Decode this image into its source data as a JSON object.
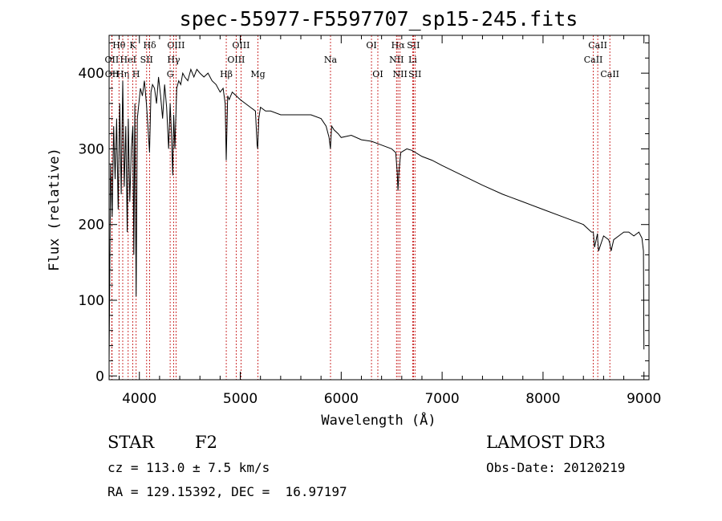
{
  "chart_data": {
    "type": "line",
    "title": "spec-55977-F5597707_sp15-245.fits",
    "xlabel": "Wavelength (Å)",
    "ylabel": "Flux (relative)",
    "xlim": [
      3700,
      9050
    ],
    "ylim": [
      -5,
      450
    ],
    "xticks": [
      4000,
      5000,
      6000,
      7000,
      8000,
      9000
    ],
    "yticks": [
      0,
      100,
      200,
      300,
      400
    ],
    "grid": false,
    "series": [
      {
        "name": "flux",
        "x": [
          3700,
          3715,
          3730,
          3745,
          3760,
          3775,
          3790,
          3805,
          3820,
          3835,
          3850,
          3865,
          3880,
          3890,
          3905,
          3920,
          3935,
          3945,
          3955,
          3968,
          3980,
          3995,
          4010,
          4030,
          4050,
          4070,
          4085,
          4101,
          4115,
          4130,
          4150,
          4170,
          4190,
          4210,
          4230,
          4250,
          4270,
          4290,
          4305,
          4318,
          4330,
          4340,
          4352,
          4370,
          4390,
          4410,
          4430,
          4450,
          4480,
          4510,
          4540,
          4570,
          4600,
          4640,
          4680,
          4720,
          4760,
          4800,
          4830,
          4850,
          4861,
          4875,
          4890,
          4920,
          4960,
          5000,
          5050,
          5100,
          5150,
          5167,
          5172,
          5183,
          5200,
          5250,
          5300,
          5400,
          5500,
          5600,
          5700,
          5800,
          5850,
          5880,
          5893,
          5905,
          5930,
          5970,
          6000,
          6100,
          6200,
          6300,
          6400,
          6500,
          6540,
          6555,
          6563,
          6572,
          6590,
          6650,
          6700,
          6800,
          6900,
          7000,
          7200,
          7400,
          7600,
          7800,
          8000,
          8200,
          8400,
          8480,
          8498,
          8510,
          8540,
          8542,
          8550,
          8600,
          8650,
          8662,
          8675,
          8700,
          8750,
          8800,
          8850,
          8900,
          8950,
          8980,
          8995,
          9000
        ],
        "y": [
          20,
          280,
          210,
          330,
          260,
          340,
          220,
          360,
          240,
          390,
          250,
          330,
          190,
          340,
          230,
          300,
          330,
          160,
          360,
          105,
          340,
          360,
          380,
          370,
          390,
          360,
          330,
          295,
          375,
          385,
          380,
          360,
          395,
          370,
          340,
          385,
          355,
          300,
          360,
          320,
          265,
          345,
          300,
          380,
          390,
          385,
          400,
          395,
          390,
          405,
          395,
          405,
          400,
          395,
          400,
          390,
          385,
          375,
          380,
          360,
          285,
          370,
          365,
          375,
          370,
          365,
          360,
          355,
          350,
          305,
          300,
          340,
          355,
          350,
          350,
          345,
          345,
          345,
          345,
          340,
          330,
          315,
          300,
          330,
          325,
          320,
          315,
          318,
          312,
          310,
          305,
          300,
          295,
          270,
          245,
          270,
          295,
          300,
          298,
          290,
          285,
          278,
          265,
          252,
          240,
          230,
          220,
          210,
          200,
          190,
          190,
          170,
          188,
          180,
          165,
          185,
          180,
          175,
          165,
          180,
          185,
          190,
          190,
          185,
          190,
          182,
          165,
          35
        ]
      }
    ],
    "lines": [
      {
        "label": "Hθ",
        "x": 3798,
        "row": 0
      },
      {
        "label": "OII",
        "x": 3727,
        "row": 1
      },
      {
        "label": "OII",
        "x": 3729,
        "row": 2
      },
      {
        "label": "Hη",
        "x": 3835,
        "row": 2
      },
      {
        "label": "HeI",
        "x": 3889,
        "row": 1
      },
      {
        "label": "K",
        "x": 3934,
        "row": 0
      },
      {
        "label": "H",
        "x": 3968,
        "row": 2
      },
      {
        "label": "SII",
        "x": 4072,
        "row": 1
      },
      {
        "label": "Hδ",
        "x": 4102,
        "row": 0
      },
      {
        "label": "OIII",
        "x": 4363,
        "row": 0
      },
      {
        "label": "Hγ",
        "x": 4340,
        "row": 1
      },
      {
        "label": "G",
        "x": 4305,
        "row": 2
      },
      {
        "label": "Hβ",
        "x": 4861,
        "row": 2
      },
      {
        "label": "OIII",
        "x": 5007,
        "row": 0
      },
      {
        "label": "OIII",
        "x": 4959,
        "row": 1
      },
      {
        "label": "Mg",
        "x": 5175,
        "row": 2
      },
      {
        "label": "Na",
        "x": 5894,
        "row": 1
      },
      {
        "label": "OI",
        "x": 6300,
        "row": 0
      },
      {
        "label": "OI",
        "x": 6363,
        "row": 2
      },
      {
        "label": "Hα",
        "x": 6563,
        "row": 0
      },
      {
        "label": "NII",
        "x": 6548,
        "row": 1
      },
      {
        "label": "NII",
        "x": 6583,
        "row": 2
      },
      {
        "label": "SII",
        "x": 6716,
        "row": 0
      },
      {
        "label": "Li",
        "x": 6708,
        "row": 1
      },
      {
        "label": "SII",
        "x": 6731,
        "row": 2
      },
      {
        "label": "CaII",
        "x": 8542,
        "row": 0
      },
      {
        "label": "CaII",
        "x": 8498,
        "row": 1
      },
      {
        "label": "CaII",
        "x": 8662,
        "row": 2
      }
    ]
  },
  "footer": {
    "object_type": "STAR",
    "subclass": "F2",
    "redshift": "cz = 113.0 ± 7.5 km/s",
    "coords": "RA = 129.15392, DEC =  16.97197",
    "survey": "LAMOST DR3",
    "obs_date": "Obs-Date: 20120219"
  }
}
